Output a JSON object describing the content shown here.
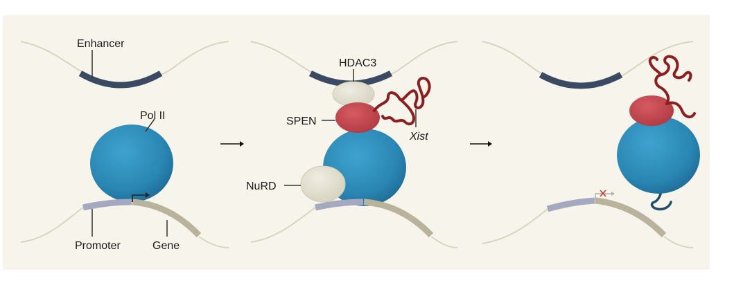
{
  "labels": {
    "enhancer": "Enhancer",
    "pol2": "Pol II",
    "promoter": "Promoter",
    "gene": "Gene",
    "hdac3": "HDAC3",
    "spen": "SPEN",
    "xist": "Xist",
    "nurd": "NuRD"
  },
  "colors": {
    "background": "#f7f4ec",
    "dna_strand": "#d9d4bd",
    "enhancer": "#3b4a63",
    "pol2": "#2a86b3",
    "pol2_dark": "#1e6c96",
    "promoter": "#a5a9bf",
    "gene": "#b9b39b",
    "hdac_nurd": "#e3e0d0",
    "spen": "#c8444c",
    "xist_rna": "#8b1f1f",
    "tail": "#1d4e6e",
    "blocked_x": "#c0392b"
  },
  "icons": [
    "arrow-right-icon",
    "tss-arrow-icon",
    "blocked-transcription-icon"
  ]
}
